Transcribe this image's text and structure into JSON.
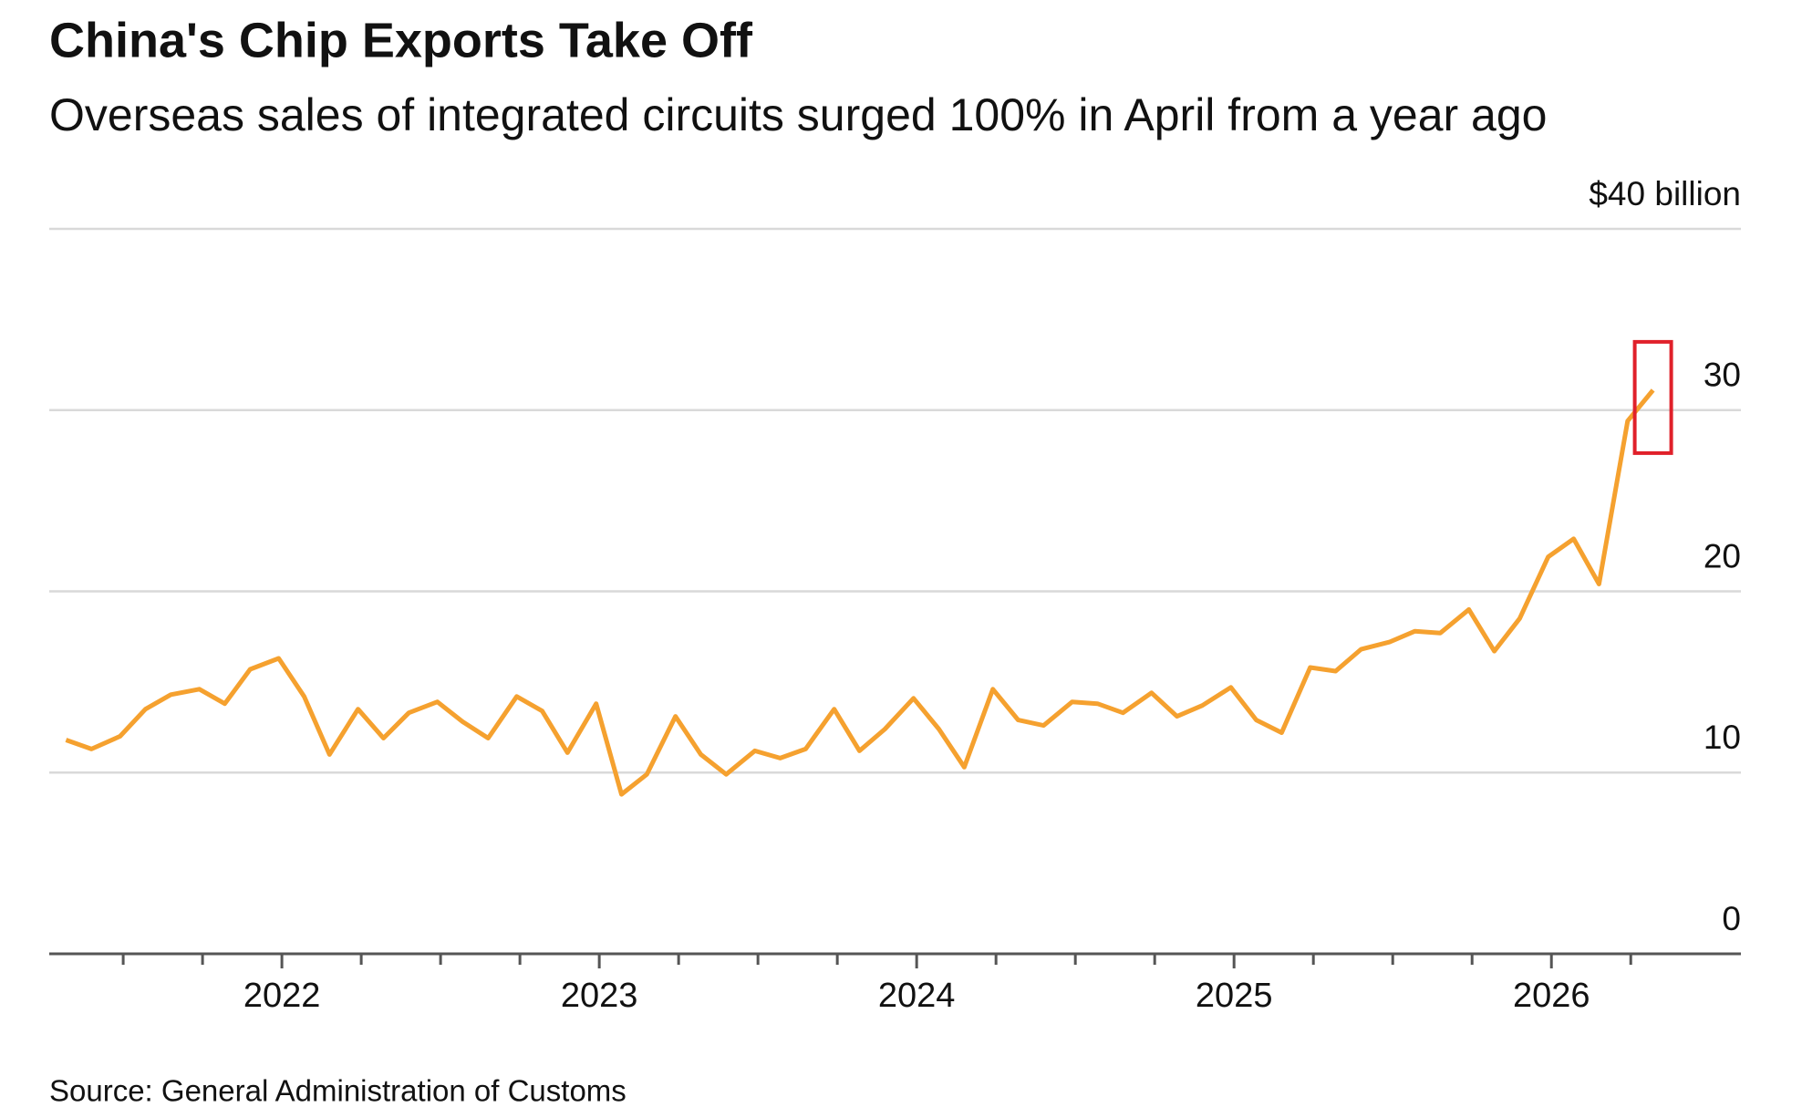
{
  "chart_data": {
    "type": "line",
    "title": "China's Chip Exports Take Off",
    "subtitle": "Overseas sales of integrated circuits surged 100% in April from a year ago",
    "source": "Source: General Administration of Customs",
    "x": [
      2021.32,
      2021.4,
      2021.49,
      2021.57,
      2021.65,
      2021.74,
      2021.82,
      2021.9,
      2021.99,
      2022.07,
      2022.15,
      2022.24,
      2022.32,
      2022.4,
      2022.49,
      2022.57,
      2022.65,
      2022.74,
      2022.82,
      2022.9,
      2022.99,
      2023.07,
      2023.15,
      2023.24,
      2023.32,
      2023.4,
      2023.49,
      2023.57,
      2023.65,
      2023.74,
      2023.82,
      2023.9,
      2023.99,
      2024.07,
      2024.15,
      2024.24,
      2024.32,
      2024.4,
      2024.49,
      2024.57,
      2024.65,
      2024.74,
      2024.82,
      2024.9,
      2024.99,
      2025.07,
      2025.15,
      2025.24,
      2025.32,
      2025.4,
      2025.49,
      2025.57,
      2025.65,
      2025.74,
      2025.82,
      2025.9,
      2025.99,
      2026.07,
      2026.15,
      2026.24,
      2026.32
    ],
    "series": [
      {
        "color": "#f5a12f",
        "values": [
          11.8,
          11.3,
          12.0,
          13.5,
          14.3,
          14.6,
          13.8,
          15.7,
          16.3,
          14.2,
          11.0,
          13.5,
          11.9,
          13.3,
          13.9,
          12.8,
          11.9,
          14.2,
          13.4,
          11.1,
          13.8,
          8.8,
          9.9,
          13.1,
          11.0,
          9.9,
          11.2,
          10.8,
          11.3,
          13.5,
          11.2,
          12.4,
          14.1,
          12.4,
          10.3,
          14.6,
          12.9,
          12.6,
          13.9,
          13.8,
          13.3,
          14.4,
          13.1,
          13.7,
          14.7,
          12.9,
          12.2,
          15.8,
          15.6,
          16.8,
          17.2,
          17.8,
          17.7,
          19.0,
          16.7,
          18.5,
          21.9,
          22.9,
          20.4,
          29.4,
          31.1
        ]
      }
    ],
    "xlim": [
      2021.267,
      2026.597
    ],
    "xticks": [
      2022,
      2023,
      2024,
      2025,
      2026
    ],
    "xminorticks": [
      2021.5,
      2021.75,
      2022.25,
      2022.5,
      2022.75,
      2023.25,
      2023.5,
      2023.75,
      2024.25,
      2024.5,
      2024.75,
      2025.25,
      2025.5,
      2025.75,
      2026.25
    ],
    "ylim": [
      0,
      40
    ],
    "yticks": [
      0,
      10,
      20,
      30,
      {
        "value": 40,
        "label": "$40 billion"
      }
    ],
    "grid": true,
    "highlight_last": true
  }
}
